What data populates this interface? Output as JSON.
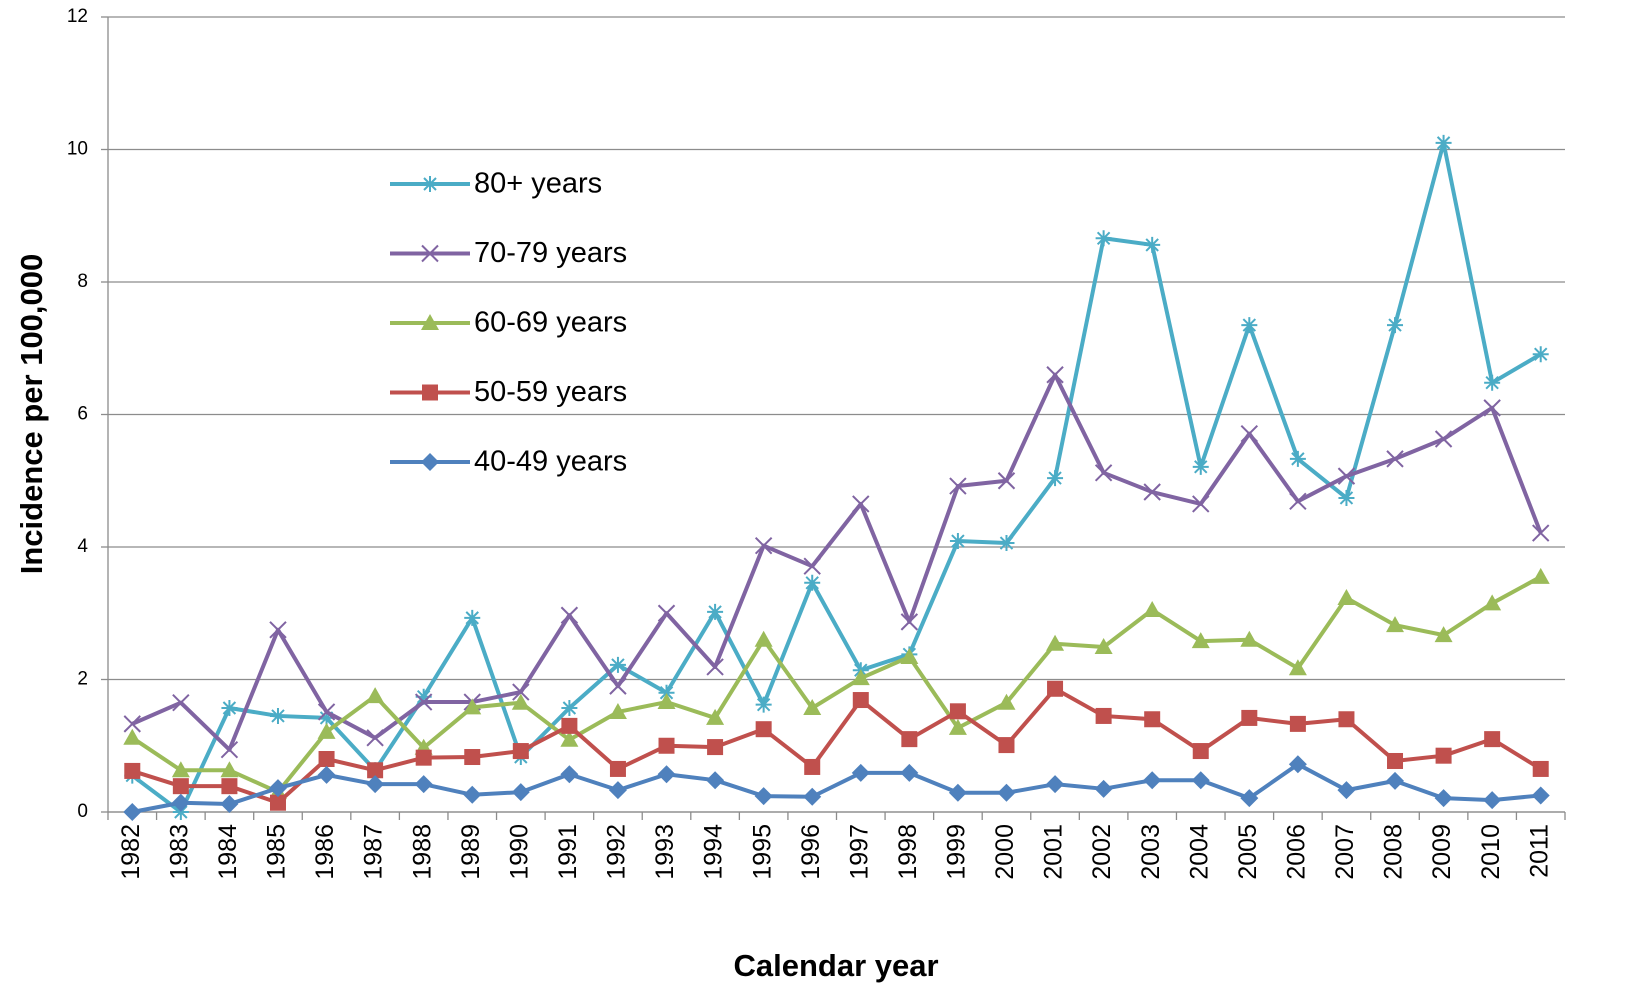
{
  "chart_data": {
    "type": "line",
    "x_label": "Calendar year",
    "y_label": "Incidence per 100,000",
    "categories": [
      "1982",
      "1983",
      "1984",
      "1985",
      "1986",
      "1987",
      "1988",
      "1989",
      "1990",
      "1991",
      "1992",
      "1993",
      "1994",
      "1995",
      "1996",
      "1997",
      "1998",
      "1999",
      "2000",
      "2001",
      "2002",
      "2003",
      "2004",
      "2005",
      "2006",
      "2007",
      "2008",
      "2009",
      "2010",
      "2011"
    ],
    "ylim": [
      0,
      12
    ],
    "yticks": [
      0,
      2,
      4,
      6,
      8,
      10,
      12
    ],
    "grid": true,
    "series": [
      {
        "name": "80+ years",
        "color": "#4BACC6",
        "marker": "star",
        "values": [
          0.55,
          0,
          1.57,
          1.45,
          1.42,
          0.63,
          1.74,
          2.93,
          0.83,
          1.57,
          2.22,
          1.8,
          3.02,
          1.62,
          3.46,
          2.14,
          2.38,
          4.09,
          4.06,
          5.04,
          8.66,
          8.56,
          5.21,
          7.35,
          5.33,
          4.74,
          7.35,
          10.1,
          6.48,
          6.91
        ]
      },
      {
        "name": "70-79 years",
        "color": "#8064A2",
        "marker": "x",
        "values": [
          1.33,
          1.65,
          0.94,
          2.75,
          1.51,
          1.12,
          1.66,
          1.66,
          1.81,
          2.97,
          1.9,
          3.0,
          2.19,
          4.02,
          3.71,
          4.65,
          2.87,
          4.92,
          5.0,
          6.6,
          5.12,
          4.83,
          4.65,
          5.71,
          4.69,
          5.07,
          5.33,
          5.63,
          6.1,
          4.21
        ]
      },
      {
        "name": "60-69 years",
        "color": "#9BBB59",
        "marker": "triangle",
        "values": [
          1.12,
          0.63,
          0.63,
          0.3,
          1.21,
          1.75,
          0.97,
          1.58,
          1.65,
          1.09,
          1.51,
          1.66,
          1.42,
          2.6,
          1.57,
          2.02,
          2.34,
          1.27,
          1.65,
          2.54,
          2.49,
          3.05,
          2.58,
          2.6,
          2.17,
          3.23,
          2.82,
          2.67,
          3.15,
          3.55
        ]
      },
      {
        "name": "50-59 years",
        "color": "#C0504D",
        "marker": "square",
        "values": [
          0.62,
          0.39,
          0.39,
          0.14,
          0.8,
          0.63,
          0.82,
          0.83,
          0.92,
          1.3,
          0.65,
          1.0,
          0.98,
          1.25,
          0.68,
          1.69,
          1.1,
          1.52,
          1.01,
          1.86,
          1.45,
          1.4,
          0.92,
          1.42,
          1.33,
          1.4,
          0.77,
          0.85,
          1.1,
          0.65
        ]
      },
      {
        "name": "40-49 years",
        "color": "#4F81BD",
        "marker": "diamond",
        "values": [
          0,
          0.14,
          0.12,
          0.36,
          0.56,
          0.42,
          0.42,
          0.26,
          0.3,
          0.57,
          0.33,
          0.57,
          0.48,
          0.24,
          0.23,
          0.59,
          0.59,
          0.29,
          0.29,
          0.42,
          0.35,
          0.48,
          0.48,
          0.21,
          0.72,
          0.33,
          0.47,
          0.21,
          0.18,
          0.25
        ]
      }
    ]
  }
}
